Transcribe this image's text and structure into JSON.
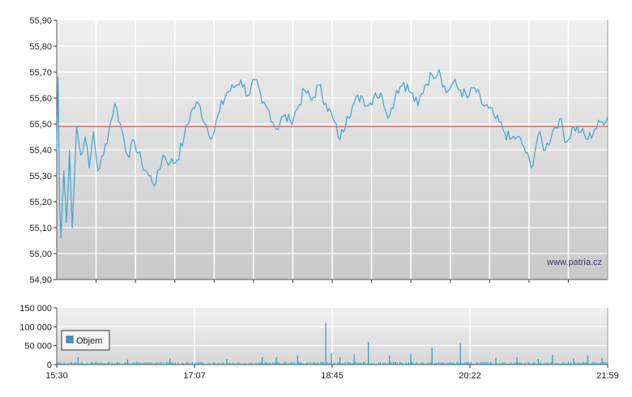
{
  "watermark": "www.patria.cz",
  "colors": {
    "price_line": "#4aa8d0",
    "reference_line": "#e05050",
    "volume_bar": "#3a9cc8",
    "grid": "#ffffff",
    "plot_bg_top": "#f0f0f0",
    "plot_bg_bottom": "#c9c9c9"
  },
  "chart_data": [
    {
      "type": "line",
      "name": "price",
      "ylim": [
        54.9,
        55.9
      ],
      "y_ticks": [
        "55,90",
        "55,80",
        "55,70",
        "55,60",
        "55,50",
        "55,40",
        "55,30",
        "55,20",
        "55,10",
        "55,00",
        "54,90"
      ],
      "reference_value": 55.49,
      "grid": true,
      "x_start": "15:30",
      "x_end": "21:59",
      "x": [
        "15:30",
        "15:31",
        "15:32",
        "15:33",
        "15:35",
        "15:37",
        "15:39",
        "15:41",
        "15:44",
        "15:47",
        "15:50",
        "15:53",
        "15:56",
        "15:59",
        "16:03",
        "16:07",
        "16:11",
        "16:15",
        "16:20",
        "16:25",
        "16:30",
        "16:35",
        "16:40",
        "16:45",
        "16:50",
        "16:55",
        "17:00",
        "17:05",
        "17:10",
        "17:15",
        "17:20",
        "17:25",
        "17:30",
        "17:35",
        "17:40",
        "17:45",
        "17:50",
        "17:55",
        "18:00",
        "18:05",
        "18:10",
        "18:15",
        "18:20",
        "18:25",
        "18:30",
        "18:35",
        "18:40",
        "18:45",
        "18:50",
        "18:55",
        "19:00",
        "19:05",
        "19:10",
        "19:15",
        "19:20",
        "19:25",
        "19:30",
        "19:35",
        "19:40",
        "19:45",
        "19:50",
        "19:55",
        "20:00",
        "20:05",
        "20:10",
        "20:15",
        "20:20",
        "20:25",
        "20:30",
        "20:35",
        "20:40",
        "20:45",
        "20:50",
        "20:55",
        "21:00",
        "21:05",
        "21:10",
        "21:15",
        "21:20",
        "21:25",
        "21:30",
        "21:35",
        "21:40",
        "21:45",
        "21:50",
        "21:55",
        "21:59"
      ],
      "y": [
        55.4,
        55.68,
        55.2,
        55.06,
        55.32,
        55.12,
        55.4,
        55.1,
        55.49,
        55.38,
        55.45,
        55.33,
        55.47,
        55.32,
        55.38,
        55.48,
        55.58,
        55.5,
        55.38,
        55.43,
        55.35,
        55.3,
        55.27,
        55.38,
        55.35,
        55.36,
        55.45,
        55.55,
        55.58,
        55.5,
        55.45,
        55.55,
        55.62,
        55.64,
        55.67,
        55.61,
        55.67,
        55.58,
        55.55,
        55.48,
        55.53,
        55.51,
        55.56,
        55.63,
        55.59,
        55.65,
        55.58,
        55.52,
        55.44,
        55.53,
        55.58,
        55.61,
        55.57,
        55.62,
        55.6,
        55.53,
        55.63,
        55.66,
        55.62,
        55.57,
        55.65,
        55.69,
        55.71,
        55.62,
        55.66,
        55.63,
        55.6,
        55.64,
        55.58,
        55.56,
        55.52,
        55.48,
        55.44,
        55.45,
        55.41,
        55.33,
        55.46,
        55.4,
        55.47,
        55.52,
        55.43,
        55.49,
        55.47,
        55.44,
        55.48,
        55.51,
        55.53
      ]
    },
    {
      "type": "bar",
      "name": "volume",
      "legend": [
        "Objem"
      ],
      "ylim": [
        0,
        150000
      ],
      "y_ticks": [
        "150 000",
        "100 000",
        "50 000",
        "0"
      ],
      "x_ticks": [
        "15:30",
        "17:07",
        "18:45",
        "20:22",
        "21:59"
      ],
      "grid": true,
      "x": [
        "15:45",
        "16:20",
        "16:50",
        "17:30",
        "17:55",
        "18:05",
        "18:20",
        "18:40",
        "18:44",
        "18:50",
        "19:00",
        "19:10",
        "19:25",
        "19:40",
        "19:55",
        "20:15",
        "20:40",
        "20:55",
        "21:10",
        "21:20",
        "21:35",
        "21:45",
        "21:55"
      ],
      "values": [
        20000,
        13000,
        17000,
        15000,
        20000,
        19000,
        24000,
        110000,
        30000,
        20000,
        27000,
        60000,
        24000,
        27000,
        45000,
        57000,
        18000,
        20000,
        15000,
        26000,
        17000,
        24000,
        18000
      ]
    }
  ]
}
